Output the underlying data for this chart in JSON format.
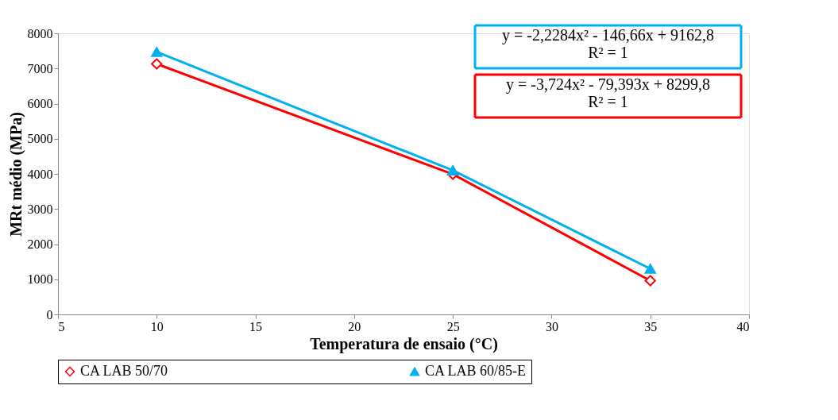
{
  "chart_data": {
    "type": "line",
    "xlabel": "Temperatura de ensaio (°C)",
    "ylabel": "MRt médio (MPa)",
    "x": [
      10,
      25,
      35
    ],
    "series": [
      {
        "name": "CA LAB 50/70",
        "color": "#ff0000",
        "values": [
          7130,
          3990,
          960
        ],
        "marker": "diamond"
      },
      {
        "name": "CA LAB 60/85-E",
        "color": "#00b0f0",
        "values": [
          7470,
          4100,
          1300
        ],
        "marker": "triangle"
      }
    ],
    "xlim": [
      5,
      40
    ],
    "xticks": [
      5,
      10,
      15,
      20,
      25,
      30,
      35,
      40
    ],
    "ylim": [
      0,
      8000
    ],
    "yticks": [
      0,
      1000,
      2000,
      3000,
      4000,
      5000,
      6000,
      7000,
      8000
    ],
    "annotations": [
      "y = -2,2284x² - 146,66x + 9162,8\nR² = 1",
      "y = -3,724x² - 79,393x + 8299,8\nR² = 1"
    ],
    "grid": false,
    "legend": "bottom",
    "line_style": "solid"
  }
}
